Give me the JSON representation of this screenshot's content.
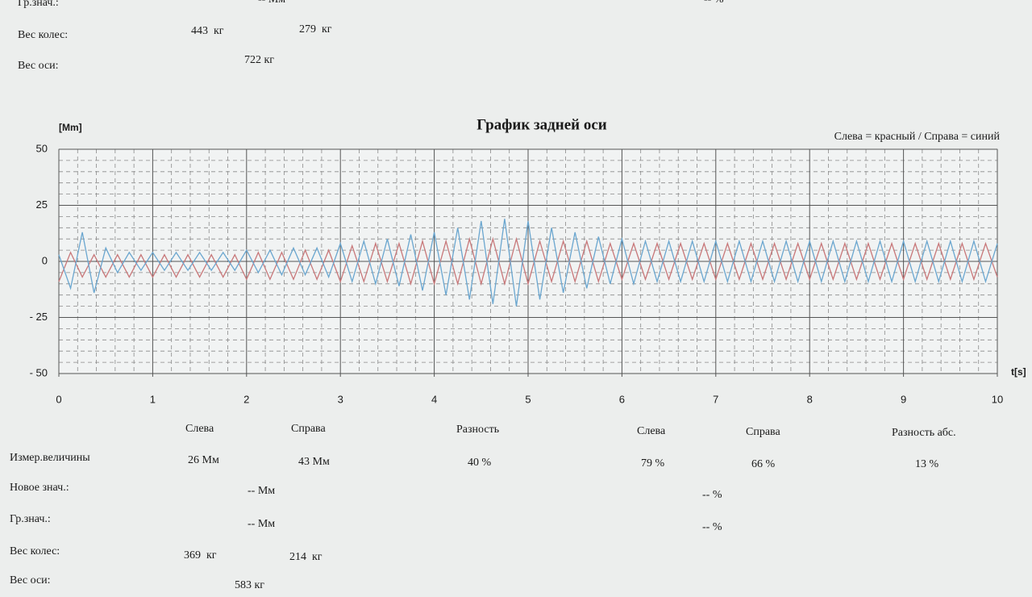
{
  "top": {
    "rows": [
      {
        "label": "Гр.знач.:",
        "cells": [
          "-- Мм",
          "-- %"
        ]
      },
      {
        "label": "Вес колес:",
        "cells": [
          "443  кг",
          "279  кг"
        ]
      },
      {
        "label": "Вес оси:",
        "cells": [
          "722 кг"
        ]
      }
    ]
  },
  "chart_data": {
    "type": "line",
    "title": "График задней оси",
    "y_label": "[Mm]",
    "x_label": "t[s]",
    "legend_text": "Слева = красный / Справа = синий",
    "x": [
      0,
      0.125,
      0.25,
      0.375,
      0.5,
      0.625,
      0.75,
      0.875,
      1,
      1.125,
      1.25,
      1.375,
      1.5,
      1.625,
      1.75,
      1.875,
      2,
      2.125,
      2.25,
      2.375,
      2.5,
      2.625,
      2.75,
      2.875,
      3,
      3.125,
      3.25,
      3.375,
      3.5,
      3.625,
      3.75,
      3.875,
      4,
      4.125,
      4.25,
      4.375,
      4.5,
      4.625,
      4.75,
      4.875,
      5,
      5.125,
      5.25,
      5.375,
      5.5,
      5.625,
      5.75,
      5.875,
      6,
      6.125,
      6.25,
      6.375,
      6.5,
      6.625,
      6.75,
      6.875,
      7,
      7.125,
      7.25,
      7.375,
      7.5,
      7.625,
      7.75,
      7.875,
      8,
      8.125,
      8.25,
      8.375,
      8.5,
      8.625,
      8.75,
      8.875,
      9,
      9.125,
      9.25,
      9.375,
      9.5,
      9.625,
      9.75,
      9.875,
      10
    ],
    "series": [
      {
        "color": "#c8787a",
        "values": [
          -9,
          4,
          -7,
          3,
          -7,
          3,
          -7,
          3,
          -7,
          3,
          -7,
          3,
          -7,
          3,
          -7,
          3,
          -8,
          4,
          -8,
          4,
          -8,
          5,
          -8,
          5,
          -9,
          7,
          -9,
          8,
          -9,
          8,
          -10,
          9,
          -10,
          9,
          -10,
          10,
          -10,
          10,
          -10,
          10,
          -10,
          9,
          -9,
          9,
          -9,
          9,
          -9,
          8,
          -8,
          8,
          -8,
          8,
          -8,
          8,
          -8,
          8,
          -8,
          8,
          -8,
          8,
          -8,
          8,
          -8,
          8,
          -8,
          8,
          -8,
          8,
          -8,
          8,
          -8,
          8,
          -8,
          8,
          -8,
          8,
          -8,
          8,
          -8,
          8,
          -7
        ]
      },
      {
        "color": "#6aa6cf",
        "values": [
          3,
          -12,
          13,
          -14,
          6,
          -5,
          4,
          -4,
          4,
          -4,
          4,
          -4,
          4,
          -4,
          4,
          -4,
          5,
          -5,
          5,
          -6,
          6,
          -6,
          6,
          -7,
          8,
          -9,
          9,
          -10,
          10,
          -11,
          12,
          -13,
          13,
          -15,
          15,
          -17,
          18,
          -19,
          19,
          -20,
          18,
          -17,
          15,
          -14,
          13,
          -12,
          11,
          -10,
          10,
          -10,
          9,
          -9,
          9,
          -9,
          9,
          -9,
          9,
          -9,
          9,
          -9,
          9,
          -9,
          9,
          -9,
          9,
          -9,
          9,
          -9,
          9,
          -9,
          9,
          -9,
          9,
          -9,
          9,
          -9,
          9,
          -9,
          9,
          -9,
          8
        ]
      }
    ],
    "xlim": [
      0,
      10
    ],
    "xticks": [
      0,
      1,
      2,
      3,
      4,
      5,
      6,
      7,
      8,
      9,
      10
    ],
    "ylim": [
      -50,
      50
    ],
    "yticks": [
      50,
      25,
      0,
      {
        "value": -25,
        "label": "- 25"
      },
      {
        "value": -50,
        "label": "- 50"
      }
    ],
    "grid": true
  },
  "results": {
    "headers": [
      "Слева",
      "Справа",
      "Разность",
      "Слева",
      "Справа",
      "Разность абс."
    ],
    "rows": [
      {
        "label": "Измер.величины",
        "cells": [
          "26 Мм",
          "43 Мм",
          "40 %",
          "79 %",
          "66 %",
          "13 %"
        ]
      },
      {
        "label": "Новое знач.:",
        "cells": [
          "-- Мм",
          "-- %"
        ]
      },
      {
        "label": "Гр.знач.:",
        "cells": [
          "-- Мм",
          "-- %"
        ]
      },
      {
        "label": "Вес колес:",
        "cells": [
          "369  кг",
          "214  кг"
        ]
      },
      {
        "label": "Вес оси:",
        "cells": [
          "583 кг"
        ]
      }
    ]
  }
}
